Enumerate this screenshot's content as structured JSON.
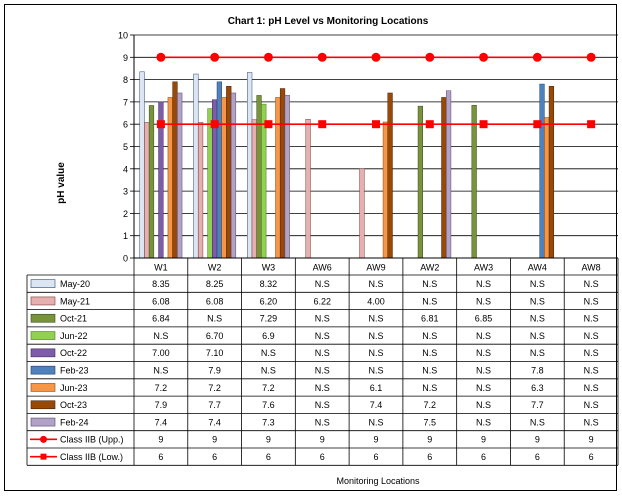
{
  "chart_data": {
    "type": "bar",
    "title": "Chart 1: pH Level vs Monitoring Locations",
    "ylabel": "pH value",
    "xlabel": "Monitoring Locations",
    "ylim": [
      0,
      10
    ],
    "yticks": [
      0,
      1,
      2,
      3,
      4,
      5,
      6,
      7,
      8,
      9,
      10
    ],
    "grid": true,
    "categories": [
      "W1",
      "W2",
      "W3",
      "AW6",
      "AW9",
      "AW2",
      "AW3",
      "AW4",
      "AW8"
    ],
    "series": [
      {
        "name": "May-20",
        "color": "#dce6f2",
        "border": "#2e4a7a",
        "type": "bar",
        "labels": [
          "8.35",
          "8.25",
          "8.32",
          "N.S",
          "N.S",
          "N.S",
          "N.S",
          "N.S",
          "N.S"
        ],
        "values": [
          8.35,
          8.25,
          8.32,
          null,
          null,
          null,
          null,
          null,
          null
        ]
      },
      {
        "name": "May-21",
        "color": "#e6b0b0",
        "border": "#7a3b3b",
        "type": "bar",
        "labels": [
          "6.08",
          "6.08",
          "6.20",
          "6.22",
          "4.00",
          "N.S",
          "N.S",
          "N.S",
          "N.S"
        ],
        "values": [
          6.08,
          6.08,
          6.2,
          6.22,
          4.0,
          null,
          null,
          null,
          null
        ]
      },
      {
        "name": "Oct-21",
        "color": "#77933c",
        "border": "#3d4d1e",
        "type": "bar",
        "labels": [
          "6.84",
          "N.S",
          "7.29",
          "N.S",
          "N.S",
          "6.81",
          "6.85",
          "N.S",
          "N.S"
        ],
        "values": [
          6.84,
          null,
          7.29,
          null,
          null,
          6.81,
          6.85,
          null,
          null
        ]
      },
      {
        "name": "Jun-22",
        "color": "#92d050",
        "border": "#4d7a23",
        "type": "bar",
        "labels": [
          "N.S",
          "6.70",
          "6.9",
          "N.S",
          "N.S",
          "N.S",
          "N.S",
          "N.S",
          "N.S"
        ],
        "values": [
          null,
          6.7,
          6.9,
          null,
          null,
          null,
          null,
          null,
          null
        ]
      },
      {
        "name": "Oct-22",
        "color": "#7f5ca8",
        "border": "#3f2a5c",
        "type": "bar",
        "labels": [
          "7.00",
          "7.10",
          "N.S",
          "N.S",
          "N.S",
          "N.S",
          "N.S",
          "N.S",
          "N.S"
        ],
        "values": [
          7.0,
          7.1,
          null,
          null,
          null,
          null,
          null,
          null,
          null
        ]
      },
      {
        "name": "Feb-23",
        "color": "#4f81bd",
        "border": "#23426b",
        "type": "bar",
        "labels": [
          "N.S",
          "7.9",
          "N.S",
          "N.S",
          "N.S",
          "N.S",
          "N.S",
          "7.8",
          "N.S"
        ],
        "values": [
          null,
          7.9,
          null,
          null,
          null,
          null,
          null,
          7.8,
          null
        ]
      },
      {
        "name": "Jun-23",
        "color": "#f79646",
        "border": "#8a4a12",
        "type": "bar",
        "labels": [
          "7.2",
          "7.2",
          "7.2",
          "N.S",
          "6.1",
          "N.S",
          "N.S",
          "6.3",
          "N.S"
        ],
        "values": [
          7.2,
          7.2,
          7.2,
          null,
          6.1,
          null,
          null,
          6.3,
          null
        ]
      },
      {
        "name": "Oct-23",
        "color": "#984807",
        "border": "#4a2203",
        "type": "bar",
        "labels": [
          "7.9",
          "7.7",
          "7.6",
          "N.S",
          "7.4",
          "7.2",
          "N.S",
          "7.7",
          "N.S"
        ],
        "values": [
          7.9,
          7.7,
          7.6,
          null,
          7.4,
          7.2,
          null,
          7.7,
          null
        ]
      },
      {
        "name": "Feb-24",
        "color": "#b3a2c7",
        "border": "#55476b",
        "type": "bar",
        "labels": [
          "7.4",
          "7.4",
          "7.3",
          "N.S",
          "N.S",
          "7.5",
          "N.S",
          "N.S",
          "N.S"
        ],
        "values": [
          7.4,
          7.4,
          7.3,
          null,
          null,
          7.5,
          null,
          null,
          null
        ]
      },
      {
        "name": "Class IIB (Upp.)",
        "color": "#ff0000",
        "type": "line",
        "marker": "circle",
        "labels": [
          "9",
          "9",
          "9",
          "9",
          "9",
          "9",
          "9",
          "9",
          "9"
        ],
        "values": [
          9,
          9,
          9,
          9,
          9,
          9,
          9,
          9,
          9
        ]
      },
      {
        "name": "Class IIB (Low.)",
        "color": "#ff0000",
        "type": "line",
        "marker": "square",
        "labels": [
          "6",
          "6",
          "6",
          "6",
          "6",
          "6",
          "6",
          "6",
          "6"
        ],
        "values": [
          6,
          6,
          6,
          6,
          6,
          6,
          6,
          6,
          6
        ]
      }
    ]
  }
}
